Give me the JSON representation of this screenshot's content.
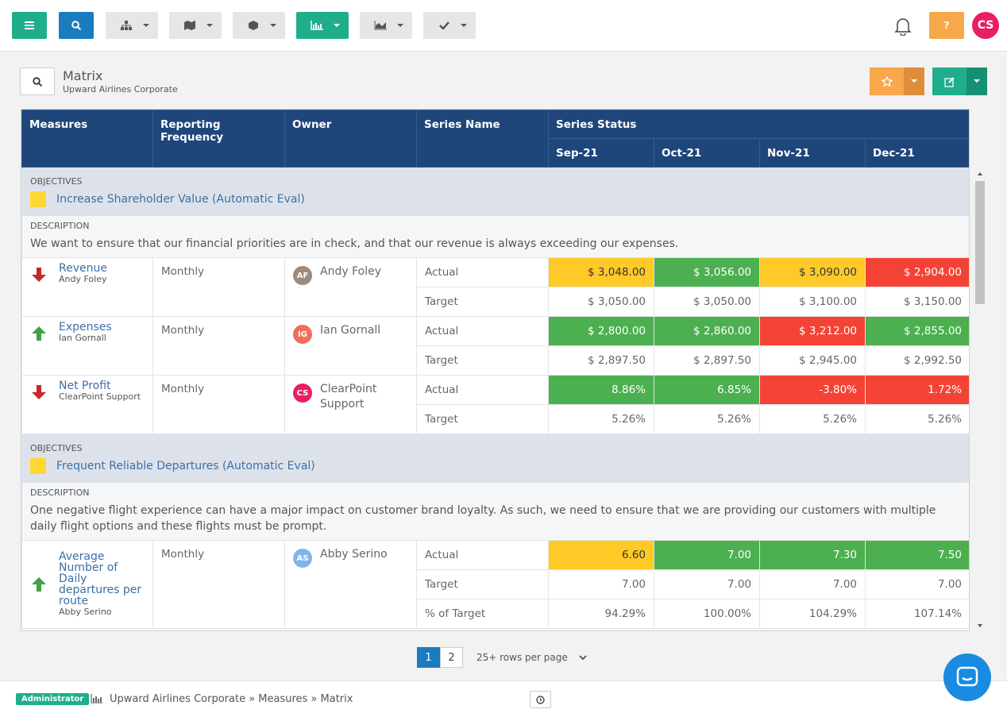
{
  "header": {
    "help": "?",
    "user_initials": "CS"
  },
  "page": {
    "title": "Matrix",
    "subtitle": "Upward Airlines Corporate"
  },
  "table": {
    "columns": [
      "Measures",
      "Reporting Frequency",
      "Owner",
      "Series Name",
      "Series Status"
    ],
    "periods": [
      "Sep-21",
      "Oct-21",
      "Nov-21",
      "Dec-21"
    ],
    "groups": [
      {
        "objectives_label": "OBJECTIVES",
        "objective": "Increase Shareholder Value (Automatic Eval)",
        "description_label": "DESCRIPTION",
        "description": "We want to ensure that our financial priorities are in check, and that our revenue is always exceeding our expenses.",
        "measures": [
          {
            "name": "Revenue",
            "owner": "Andy Foley",
            "owner_initials": "AF",
            "owner_color": "#9e8a7a",
            "frequency": "Monthly",
            "trend": "down",
            "series": [
              {
                "name": "Actual",
                "values": [
                  "$ 3,048.00",
                  "$ 3,056.00",
                  "$ 3,090.00",
                  "$ 2,904.00"
                ],
                "status": [
                  "yellow",
                  "green",
                  "yellow",
                  "red"
                ]
              },
              {
                "name": "Target",
                "values": [
                  "$ 3,050.00",
                  "$ 3,050.00",
                  "$ 3,100.00",
                  "$ 3,150.00"
                ]
              }
            ]
          },
          {
            "name": "Expenses",
            "owner": "Ian Gornall",
            "owner_initials": "IG",
            "owner_color": "#ef6f5a",
            "frequency": "Monthly",
            "trend": "up",
            "series": [
              {
                "name": "Actual",
                "values": [
                  "$ 2,800.00",
                  "$ 2,860.00",
                  "$ 3,212.00",
                  "$ 2,855.00"
                ],
                "status": [
                  "green",
                  "green",
                  "red",
                  "green"
                ]
              },
              {
                "name": "Target",
                "values": [
                  "$ 2,897.50",
                  "$ 2,897.50",
                  "$ 2,945.00",
                  "$ 2,992.50"
                ]
              }
            ]
          },
          {
            "name": "Net Profit",
            "owner": "ClearPoint Support",
            "owner_initials": "CS",
            "owner_color": "#e91e63",
            "frequency": "Monthly",
            "trend": "down",
            "series": [
              {
                "name": "Actual",
                "values": [
                  "8.86%",
                  "6.85%",
                  "-3.80%",
                  "1.72%"
                ],
                "status": [
                  "green",
                  "green",
                  "red",
                  "red"
                ]
              },
              {
                "name": "Target",
                "values": [
                  "5.26%",
                  "5.26%",
                  "5.26%",
                  "5.26%"
                ]
              }
            ]
          }
        ]
      },
      {
        "objectives_label": "OBJECTIVES",
        "objective": "Frequent Reliable Departures (Automatic Eval)",
        "description_label": "DESCRIPTION",
        "description": "One negative flight experience can have a major impact on customer brand loyalty. As such, we need to ensure that we are providing our customers with multiple daily flight options and these flights must be prompt.",
        "measures": [
          {
            "name": "Average Number of Daily departures per route",
            "owner": "Abby Serino",
            "owner_initials": "AS",
            "owner_color": "#7fb6ea",
            "frequency": "Monthly",
            "trend": "up",
            "series": [
              {
                "name": "Actual",
                "values": [
                  "6.60",
                  "7.00",
                  "7.30",
                  "7.50"
                ],
                "status": [
                  "yellow",
                  "green",
                  "green",
                  "green"
                ]
              },
              {
                "name": "Target",
                "values": [
                  "7.00",
                  "7.00",
                  "7.00",
                  "7.00"
                ]
              },
              {
                "name": "% of Target",
                "values": [
                  "94.29%",
                  "100.00%",
                  "104.29%",
                  "107.14%"
                ]
              }
            ]
          }
        ]
      }
    ]
  },
  "pagination": {
    "pages": [
      "1",
      "2"
    ],
    "rows_per_page": "25+ rows per page"
  },
  "footer": {
    "role": "Administrator",
    "breadcrumb": "Upward Airlines Corporate » Measures » Matrix"
  }
}
